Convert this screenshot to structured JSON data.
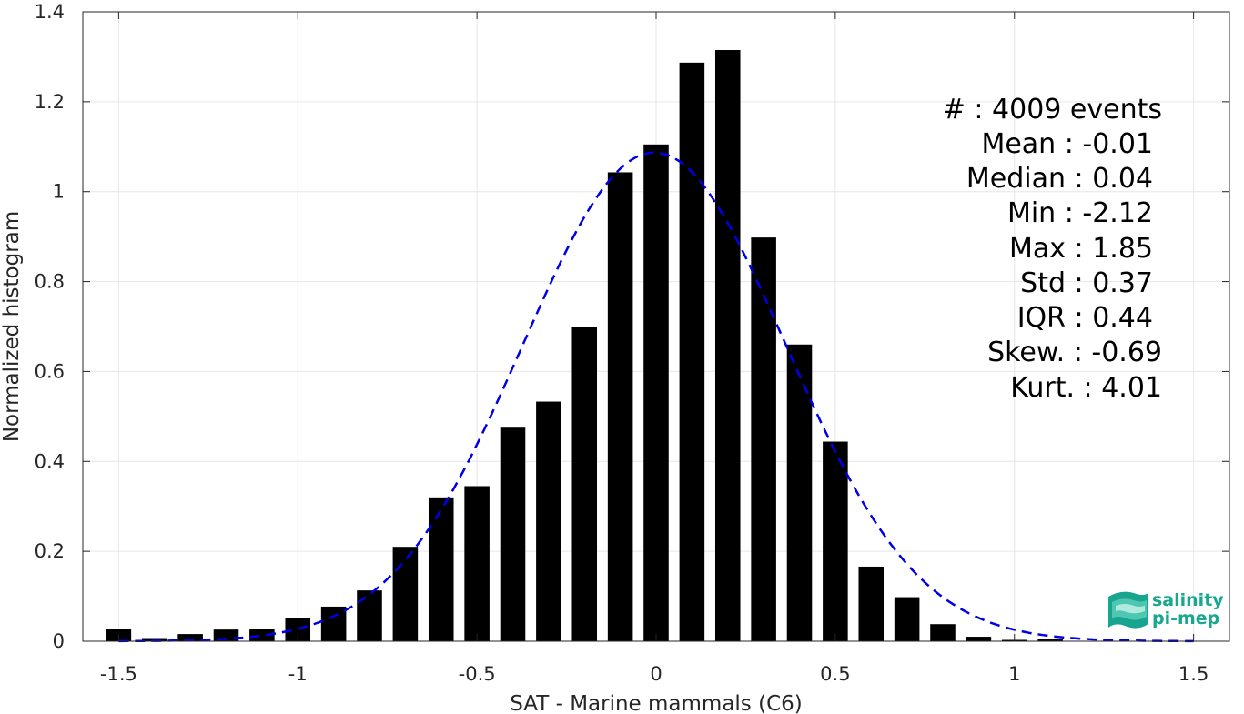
{
  "chart_data": {
    "type": "bar",
    "xlabel": "SAT - Marine mammals (C6)",
    "ylabel": "Normalized histogram",
    "xlim": [
      -1.6,
      1.6
    ],
    "ylim": [
      0,
      1.4
    ],
    "xticks": [
      -1.5,
      -1,
      -0.5,
      0,
      0.5,
      1,
      1.5
    ],
    "xtick_labels": [
      "-1.5",
      "-1",
      "-0.5",
      "0",
      "0.5",
      "1",
      "1.5"
    ],
    "yticks": [
      0,
      0.2,
      0.4,
      0.6,
      0.8,
      1.0,
      1.2,
      1.4
    ],
    "ytick_labels": [
      "0",
      "0.2",
      "0.4",
      "0.6",
      "0.8",
      "1",
      "1.2",
      "1.4"
    ],
    "grid": true,
    "bin_width": 0.1,
    "bins": [
      {
        "x": -1.5,
        "y": 0.028
      },
      {
        "x": -1.4,
        "y": 0.007
      },
      {
        "x": -1.3,
        "y": 0.016
      },
      {
        "x": -1.2,
        "y": 0.026
      },
      {
        "x": -1.1,
        "y": 0.028
      },
      {
        "x": -1.0,
        "y": 0.052
      },
      {
        "x": -0.9,
        "y": 0.077
      },
      {
        "x": -0.8,
        "y": 0.113
      },
      {
        "x": -0.7,
        "y": 0.21
      },
      {
        "x": -0.6,
        "y": 0.32
      },
      {
        "x": -0.5,
        "y": 0.345
      },
      {
        "x": -0.4,
        "y": 0.475
      },
      {
        "x": -0.3,
        "y": 0.533
      },
      {
        "x": -0.2,
        "y": 0.7
      },
      {
        "x": -0.1,
        "y": 1.043
      },
      {
        "x": 0.0,
        "y": 1.105
      },
      {
        "x": 0.1,
        "y": 1.287
      },
      {
        "x": 0.2,
        "y": 1.315
      },
      {
        "x": 0.3,
        "y": 0.898
      },
      {
        "x": 0.4,
        "y": 0.66
      },
      {
        "x": 0.5,
        "y": 0.444
      },
      {
        "x": 0.6,
        "y": 0.166
      },
      {
        "x": 0.7,
        "y": 0.098
      },
      {
        "x": 0.8,
        "y": 0.038
      },
      {
        "x": 0.9,
        "y": 0.01
      },
      {
        "x": 1.0,
        "y": 0.003
      },
      {
        "x": 1.1,
        "y": 0.005
      },
      {
        "x": 1.2,
        "y": 0.0
      },
      {
        "x": 1.3,
        "y": 0.0
      },
      {
        "x": 1.4,
        "y": 0.0
      },
      {
        "x": 1.5,
        "y": 0.001
      }
    ],
    "fit": {
      "type": "gaussian",
      "mean": -0.005,
      "std": 0.367,
      "peak": 1.087,
      "color": "#0000e6",
      "style": "dashed"
    },
    "bar_color": "#000000"
  },
  "stats": {
    "lines": [
      "#  : 4009 events",
      "Mean : -0.01",
      "Median : 0.04",
      "Min : -2.12",
      "Max : 1.85",
      "Std : 0.37",
      "IQR : 0.44",
      "Skew. : -0.69",
      "Kurt. : 4.01"
    ]
  },
  "logo": {
    "line1": "salinity",
    "line2": "pi-mep",
    "color": "#17a88f"
  }
}
